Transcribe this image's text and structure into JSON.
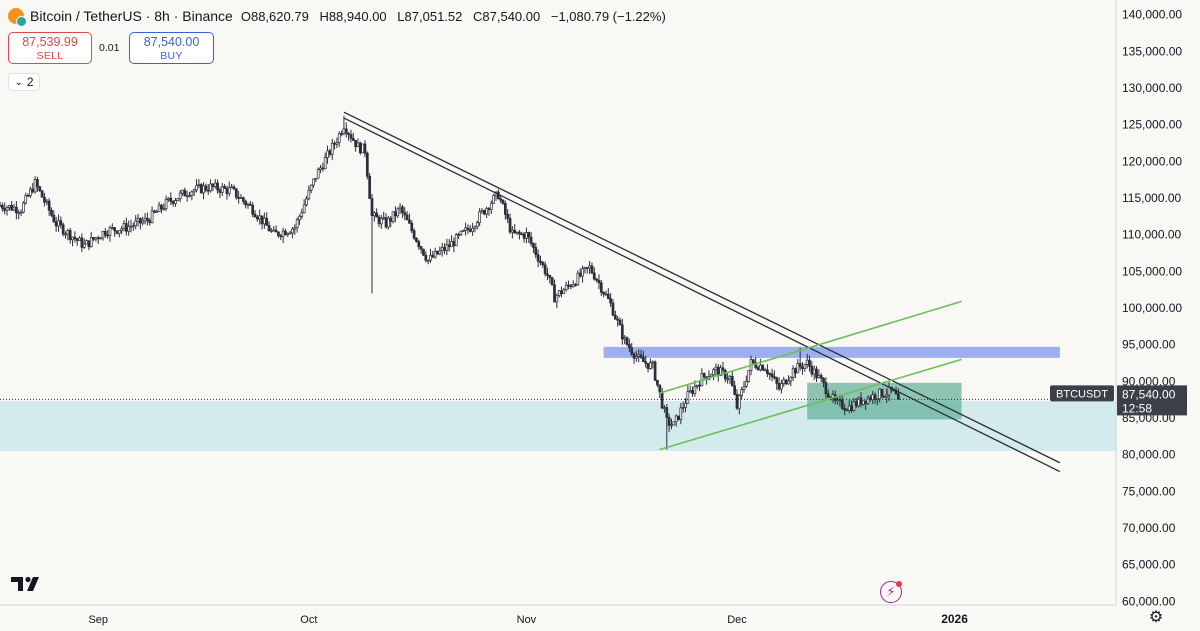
{
  "header": {
    "title": "Bitcoin / TetherUS · 8h · Binance",
    "o_label": "O",
    "o_value": "88,620.79",
    "h_label": "H",
    "h_value": "88,940.00",
    "l_label": "L",
    "l_value": "87,051.52",
    "c_label": "C",
    "c_value": "87,540.00",
    "change": "−1,080.79 (−1.22%)"
  },
  "trade": {
    "sell_price": "87,539.99",
    "sell_label": "SELL",
    "spread": "0.01",
    "buy_price": "87,540.00",
    "buy_label": "BUY"
  },
  "indicator_toggle": {
    "count": "2",
    "icon": "chevron-down-icon"
  },
  "price_badge": {
    "symbol": "BTCUSDT",
    "price": "87,540.00",
    "countdown": "12:58"
  },
  "colors": {
    "background": "#f9f8f4",
    "candle": "#2a2e39",
    "sell": "#d94b4b",
    "buy": "#3d5fd6",
    "resistance_band": "#8da2ec",
    "support_band": "#bfe3e8",
    "channel": "#6cbf5b",
    "consolidation_box": "#5fae95",
    "trendline": "#2a2e39"
  },
  "chart_data": {
    "type": "candlestick",
    "symbol": "BTCUSDT",
    "interval": "8h",
    "ylim": [
      59500,
      142000
    ],
    "y_ticks": [
      "140,000.00",
      "135,000.00",
      "130,000.00",
      "125,000.00",
      "120,000.00",
      "115,000.00",
      "110,000.00",
      "105,000.00",
      "100,000.00",
      "95,000.00",
      "90,000.00",
      "85,000.00",
      "80,000.00",
      "75,000.00",
      "70,000.00",
      "65,000.00",
      "60,000.00"
    ],
    "x_ticks": [
      {
        "label": "Sep",
        "date": "2025-09-01",
        "bold": false
      },
      {
        "label": "Oct",
        "date": "2025-10-01",
        "bold": false
      },
      {
        "label": "Nov",
        "date": "2025-11-01",
        "bold": false
      },
      {
        "label": "Dec",
        "date": "2025-12-01",
        "bold": false
      },
      {
        "label": "2026",
        "date": "2026-01-01",
        "bold": true
      }
    ],
    "xlim": [
      "2025-08-18",
      "2026-01-24"
    ],
    "price_path": [
      [
        "2025-08-18",
        114000
      ],
      [
        "2025-08-21",
        113500
      ],
      [
        "2025-08-23",
        117000
      ],
      [
        "2025-08-26",
        111500
      ],
      [
        "2025-08-30",
        108500
      ],
      [
        "2025-09-02",
        110500
      ],
      [
        "2025-09-05",
        111000
      ],
      [
        "2025-09-08",
        112000
      ],
      [
        "2025-09-11",
        114500
      ],
      [
        "2025-09-14",
        116000
      ],
      [
        "2025-09-17",
        116500
      ],
      [
        "2025-09-20",
        116000
      ],
      [
        "2025-09-23",
        113500
      ],
      [
        "2025-09-26",
        110000
      ],
      [
        "2025-09-29",
        111000
      ],
      [
        "2025-10-02",
        118000
      ],
      [
        "2025-10-05",
        123000
      ],
      [
        "2025-10-06",
        125000
      ],
      [
        "2025-10-08",
        122000
      ],
      [
        "2025-10-09",
        121500
      ],
      [
        "2025-10-10",
        112500
      ],
      [
        "2025-10-12",
        111500
      ],
      [
        "2025-10-14",
        113500
      ],
      [
        "2025-10-16",
        110000
      ],
      [
        "2025-10-18",
        106500
      ],
      [
        "2025-10-21",
        108500
      ],
      [
        "2025-10-24",
        111000
      ],
      [
        "2025-10-27",
        114500
      ],
      [
        "2025-10-28",
        115500
      ],
      [
        "2025-10-30",
        110000
      ],
      [
        "2025-11-01",
        110000
      ],
      [
        "2025-11-04",
        104500
      ],
      [
        "2025-11-05",
        101500
      ],
      [
        "2025-11-07",
        103000
      ],
      [
        "2025-11-10",
        105500
      ],
      [
        "2025-11-11",
        104000
      ],
      [
        "2025-11-13",
        100500
      ],
      [
        "2025-11-15",
        95500
      ],
      [
        "2025-11-17",
        93000
      ],
      [
        "2025-11-19",
        92000
      ],
      [
        "2025-11-21",
        84500
      ],
      [
        "2025-11-22",
        84000
      ],
      [
        "2025-11-24",
        88000
      ],
      [
        "2025-11-26",
        90500
      ],
      [
        "2025-11-28",
        91500
      ],
      [
        "2025-11-30",
        90500
      ],
      [
        "2025-12-01",
        86500
      ],
      [
        "2025-12-03",
        92500
      ],
      [
        "2025-12-05",
        92000
      ],
      [
        "2025-12-07",
        89000
      ],
      [
        "2025-12-09",
        91500
      ],
      [
        "2025-12-11",
        92500
      ],
      [
        "2025-12-13",
        90000
      ],
      [
        "2025-12-15",
        87000
      ],
      [
        "2025-12-17",
        86500
      ],
      [
        "2025-12-19",
        87500
      ],
      [
        "2025-12-21",
        88200
      ],
      [
        "2025-12-23",
        88600
      ],
      [
        "2025-12-24",
        87540
      ]
    ],
    "wicks": [
      {
        "date": "2025-10-10",
        "low": 102000
      },
      {
        "date": "2025-10-06",
        "high": 126200
      },
      {
        "date": "2025-11-21",
        "low": 80700
      },
      {
        "date": "2025-12-10",
        "high": 94600
      }
    ],
    "last_price": 87540,
    "annotations": [
      {
        "type": "trendline",
        "from": [
          "2025-10-06",
          126700
        ],
        "to": [
          "2026-01-16",
          78900
        ]
      },
      {
        "type": "trendline",
        "from": [
          "2025-10-06",
          125900
        ],
        "to": [
          "2026-01-16",
          77700
        ]
      },
      {
        "type": "channel_line",
        "from": [
          "2025-11-20",
          80700
        ],
        "to": [
          "2026-01-02",
          93000
        ]
      },
      {
        "type": "channel_line",
        "from": [
          "2025-11-20",
          88400
        ],
        "to": [
          "2026-01-02",
          100900
        ]
      },
      {
        "type": "resistance_zone",
        "x_from": "2025-11-12",
        "x_to": "2026-01-16",
        "y_from": 93200,
        "y_to": 94700
      },
      {
        "type": "support_zone",
        "x_from": "2025-08-18",
        "x_to": "2026-01-24",
        "y_from": 80500,
        "y_to": 87300
      },
      {
        "type": "consolidation_box",
        "x_from": "2025-12-11",
        "x_to": "2026-01-02",
        "y_from": 84800,
        "y_to": 89800
      }
    ]
  }
}
